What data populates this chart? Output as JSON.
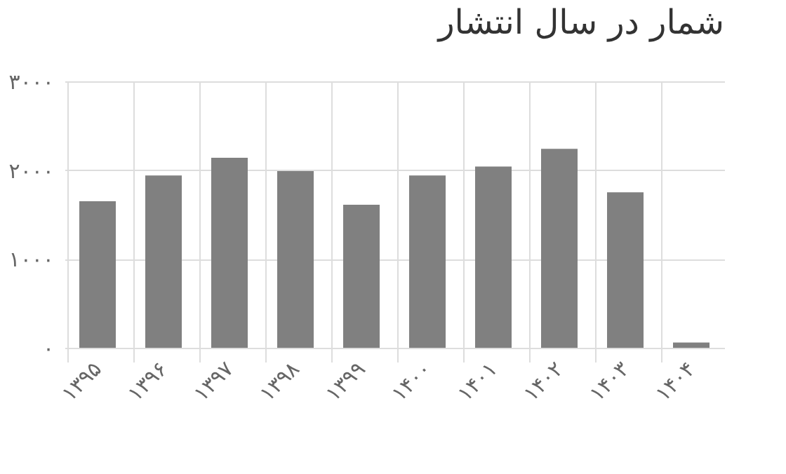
{
  "chart_data": {
    "type": "bar",
    "title": "شمار در سال انتشار",
    "categories": [
      "۱۳۹۵",
      "۱۳۹۶",
      "۱۳۹۷",
      "۱۳۹۸",
      "۱۳۹۹",
      "۱۴۰۰",
      "۱۴۰۱",
      "۱۴۰۲",
      "۱۴۰۳",
      "۱۴۰۴"
    ],
    "values": [
      1650,
      1940,
      2140,
      1990,
      1610,
      1940,
      2040,
      2240,
      1750,
      60
    ],
    "color": "#808080",
    "ylim": [
      0,
      3000
    ],
    "yticks": [
      {
        "value": 0,
        "label": "۰"
      },
      {
        "value": 1000,
        "label": "۱۰۰۰"
      },
      {
        "value": 2000,
        "label": "۲۰۰۰"
      },
      {
        "value": 3000,
        "label": "۳۰۰۰"
      }
    ],
    "grid": true
  }
}
